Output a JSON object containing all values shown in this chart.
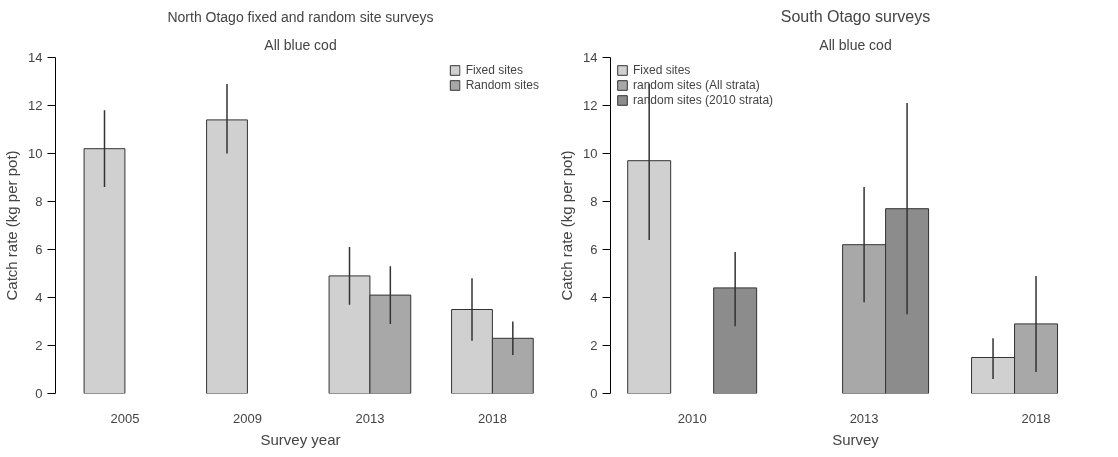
{
  "chart_data": [
    {
      "type": "bar",
      "title": "North Otago fixed and random site surveys",
      "subtitle": "All blue cod",
      "xlabel": "Survey year",
      "ylabel": "Catch rate (kg per pot)",
      "categories": [
        "2005",
        "2009",
        "2013",
        "2018"
      ],
      "ylim": [
        0,
        14
      ],
      "yticks": [
        0,
        2,
        4,
        6,
        8,
        10,
        12,
        14
      ],
      "legend": "top right",
      "series": [
        {
          "name": "Fixed sites",
          "color": "#d0d0d0",
          "values": [
            10.2,
            11.4,
            4.9,
            3.5
          ],
          "errors": [
            [
              8.6,
              11.8
            ],
            [
              10.0,
              12.9
            ],
            [
              3.7,
              6.1
            ],
            [
              2.2,
              4.8
            ]
          ]
        },
        {
          "name": "Random sites",
          "color": "#a8a8a8",
          "values": [
            null,
            null,
            4.1,
            2.3
          ],
          "errors": [
            null,
            null,
            [
              2.9,
              5.3
            ],
            [
              1.6,
              3.0
            ]
          ]
        }
      ]
    },
    {
      "type": "bar",
      "title": "South Otago surveys",
      "subtitle": "All blue cod",
      "xlabel": "Survey",
      "ylabel": "Catch rate (kg per pot)",
      "categories": [
        "2010",
        "2013",
        "2018"
      ],
      "ylim": [
        0,
        14
      ],
      "yticks": [
        0,
        2,
        4,
        6,
        8,
        10,
        12,
        14
      ],
      "legend": "top left",
      "series": [
        {
          "name": "Fixed sites",
          "color": "#d0d0d0",
          "values": [
            9.7,
            null,
            1.5
          ],
          "errors": [
            [
              6.4,
              12.9
            ],
            null,
            [
              0.6,
              2.3
            ]
          ]
        },
        {
          "name": "random sites (All strata)",
          "color": "#a8a8a8",
          "values": [
            null,
            6.2,
            2.9
          ],
          "errors": [
            null,
            [
              3.8,
              8.6
            ],
            [
              0.9,
              4.9
            ]
          ]
        },
        {
          "name": "random sites (2010 strata)",
          "color": "#8c8c8c",
          "values": [
            4.4,
            7.7,
            null
          ],
          "errors": [
            [
              2.8,
              5.9
            ],
            [
              3.3,
              12.1
            ],
            null
          ]
        }
      ]
    }
  ]
}
